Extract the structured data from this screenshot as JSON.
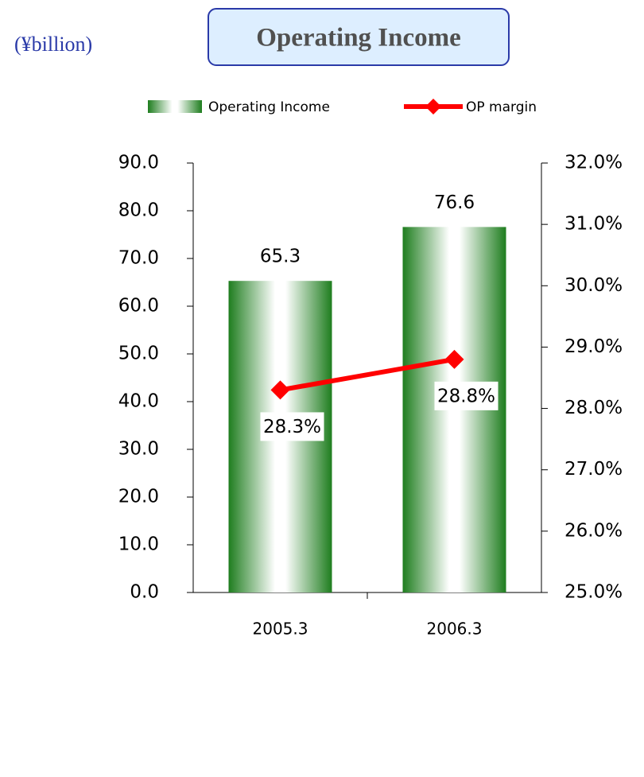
{
  "chart_data": {
    "type": "bar_line",
    "title": "Operating Income",
    "unit_label": "(¥billion)",
    "categories": [
      "2005.3",
      "2006.3"
    ],
    "series": [
      {
        "name": "Operating Income",
        "type": "bar",
        "color": "#1e7d1e",
        "values": [
          65.3,
          76.6
        ]
      },
      {
        "name": "OP margin",
        "type": "line",
        "axis": "y2",
        "color": "#ff0000",
        "values": [
          28.3,
          28.8
        ],
        "value_labels": [
          "28.3%",
          "28.8%"
        ]
      }
    ],
    "ylim": [
      0,
      90
    ],
    "yticks": [
      {
        "value": 0,
        "label": "0.0"
      },
      {
        "value": 10,
        "label": "10.0"
      },
      {
        "value": 20,
        "label": "20.0"
      },
      {
        "value": 30,
        "label": "30.0"
      },
      {
        "value": 40,
        "label": "40.0"
      },
      {
        "value": 50,
        "label": "50.0"
      },
      {
        "value": 60,
        "label": "60.0"
      },
      {
        "value": 70,
        "label": "70.0"
      },
      {
        "value": 80,
        "label": "80.0"
      },
      {
        "value": 90,
        "label": "90.0"
      }
    ],
    "y2lim": [
      25,
      32
    ],
    "y2ticks": [
      {
        "value": 25,
        "label": "25.0%"
      },
      {
        "value": 26,
        "label": "26.0%"
      },
      {
        "value": 27,
        "label": "27.0%"
      },
      {
        "value": 28,
        "label": "28.0%"
      },
      {
        "value": 29,
        "label": "29.0%"
      },
      {
        "value": 30,
        "label": "30.0%"
      },
      {
        "value": 31,
        "label": "31.0%"
      },
      {
        "value": 32,
        "label": "32.0%"
      }
    ],
    "legend": "top"
  }
}
